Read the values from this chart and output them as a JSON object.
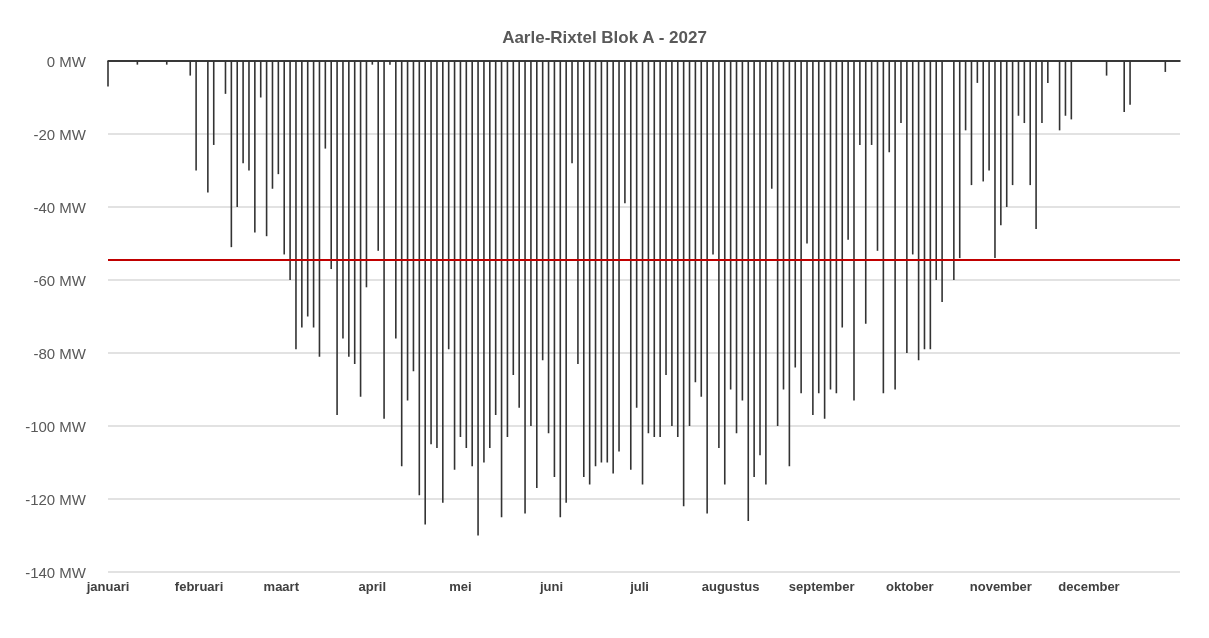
{
  "chart_data": {
    "type": "bar",
    "title": "Aarle-Rixtel Blok A - 2027",
    "x": [
      "2027-01-01",
      "2027-01-03",
      "2027-01-05",
      "2027-01-07",
      "2027-01-09",
      "2027-01-11",
      "2027-01-13",
      "2027-01-15",
      "2027-01-17",
      "2027-01-19",
      "2027-01-21",
      "2027-01-23",
      "2027-01-25",
      "2027-01-27",
      "2027-01-29",
      "2027-01-31",
      "2027-02-02",
      "2027-02-04",
      "2027-02-06",
      "2027-02-08",
      "2027-02-10",
      "2027-02-12",
      "2027-02-14",
      "2027-02-16",
      "2027-02-18",
      "2027-02-20",
      "2027-02-22",
      "2027-02-24",
      "2027-02-26",
      "2027-02-28",
      "2027-03-02",
      "2027-03-04",
      "2027-03-06",
      "2027-03-08",
      "2027-03-10",
      "2027-03-12",
      "2027-03-14",
      "2027-03-16",
      "2027-03-18",
      "2027-03-20",
      "2027-03-22",
      "2027-03-24",
      "2027-03-26",
      "2027-03-28",
      "2027-03-30",
      "2027-04-01",
      "2027-04-03",
      "2027-04-05",
      "2027-04-07",
      "2027-04-09",
      "2027-04-11",
      "2027-04-13",
      "2027-04-15",
      "2027-04-17",
      "2027-04-19",
      "2027-04-21",
      "2027-04-23",
      "2027-04-25",
      "2027-04-27",
      "2027-04-29",
      "2027-05-01",
      "2027-05-03",
      "2027-05-05",
      "2027-05-07",
      "2027-05-09",
      "2027-05-11",
      "2027-05-13",
      "2027-05-15",
      "2027-05-17",
      "2027-05-19",
      "2027-05-21",
      "2027-05-23",
      "2027-05-25",
      "2027-05-27",
      "2027-05-29",
      "2027-05-31",
      "2027-06-02",
      "2027-06-04",
      "2027-06-06",
      "2027-06-08",
      "2027-06-10",
      "2027-06-12",
      "2027-06-14",
      "2027-06-16",
      "2027-06-18",
      "2027-06-20",
      "2027-06-22",
      "2027-06-24",
      "2027-06-26",
      "2027-06-28",
      "2027-06-30",
      "2027-07-02",
      "2027-07-04",
      "2027-07-06",
      "2027-07-08",
      "2027-07-10",
      "2027-07-12",
      "2027-07-14",
      "2027-07-16",
      "2027-07-18",
      "2027-07-20",
      "2027-07-22",
      "2027-07-24",
      "2027-07-26",
      "2027-07-28",
      "2027-07-30",
      "2027-08-01",
      "2027-08-03",
      "2027-08-05",
      "2027-08-07",
      "2027-08-09",
      "2027-08-11",
      "2027-08-13",
      "2027-08-15",
      "2027-08-17",
      "2027-08-19",
      "2027-08-21",
      "2027-08-23",
      "2027-08-25",
      "2027-08-27",
      "2027-08-29",
      "2027-08-31",
      "2027-09-02",
      "2027-09-04",
      "2027-09-06",
      "2027-09-08",
      "2027-09-10",
      "2027-09-12",
      "2027-09-14",
      "2027-09-16",
      "2027-09-18",
      "2027-09-20",
      "2027-09-22",
      "2027-09-24",
      "2027-09-26",
      "2027-09-28",
      "2027-09-30",
      "2027-10-02",
      "2027-10-04",
      "2027-10-06",
      "2027-10-08",
      "2027-10-10",
      "2027-10-12",
      "2027-10-14",
      "2027-10-16",
      "2027-10-18",
      "2027-10-20",
      "2027-10-22",
      "2027-10-24",
      "2027-10-26",
      "2027-10-28",
      "2027-10-30",
      "2027-11-01",
      "2027-11-03",
      "2027-11-05",
      "2027-11-07",
      "2027-11-09",
      "2027-11-11",
      "2027-11-13",
      "2027-11-15",
      "2027-11-17",
      "2027-11-19",
      "2027-11-21",
      "2027-11-23",
      "2027-11-25",
      "2027-11-27",
      "2027-11-29",
      "2027-12-01",
      "2027-12-03",
      "2027-12-05",
      "2027-12-07",
      "2027-12-09",
      "2027-12-11",
      "2027-12-13",
      "2027-12-15",
      "2027-12-17",
      "2027-12-19",
      "2027-12-21",
      "2027-12-23",
      "2027-12-25",
      "2027-12-27",
      "2027-12-29",
      "2027-12-31"
    ],
    "series": [
      {
        "color": "#333333",
        "values": [
          -7,
          0,
          0,
          0,
          0,
          -1,
          0,
          0,
          0,
          0,
          -1,
          0,
          0,
          0,
          -4,
          -30,
          0,
          -36,
          -23,
          0,
          -9,
          -51,
          -40,
          -28,
          -30,
          -47,
          -10,
          -48,
          -35,
          -31,
          -53,
          -60,
          -79,
          -73,
          -70,
          -73,
          -81,
          -24,
          -57,
          -97,
          -76,
          -81,
          -83,
          -92,
          -62,
          -1,
          -52,
          -98,
          -1,
          -76,
          -111,
          -93,
          -85,
          -119,
          -127,
          -105,
          -106,
          -121,
          -79,
          -112,
          -103,
          -106,
          -111,
          -130,
          -110,
          -106,
          -97,
          -125,
          -103,
          -86,
          -95,
          -124,
          -100,
          -117,
          -82,
          -102,
          -114,
          -125,
          -121,
          -28,
          -83,
          -114,
          -116,
          -111,
          -110,
          -110,
          -113,
          -107,
          -39,
          -112,
          -95,
          -116,
          -102,
          -103,
          -103,
          -86,
          -100,
          -103,
          -122,
          -100,
          -88,
          -92,
          -124,
          -53,
          -106,
          -116,
          -90,
          -102,
          -93,
          -126,
          -114,
          -108,
          -116,
          -35,
          -100,
          -90,
          -111,
          -84,
          -91,
          -50,
          -97,
          -91,
          -98,
          -90,
          -91,
          -73,
          -49,
          -93,
          -23,
          -72,
          -23,
          -52,
          -91,
          -25,
          -90,
          -17,
          -80,
          -53,
          -82,
          -79,
          -79,
          -60,
          -66,
          0,
          -60,
          -54,
          -19,
          -34,
          -6,
          -33,
          -30,
          -54,
          -45,
          -40,
          -34,
          -15,
          -17,
          -34,
          -46,
          -17,
          -6,
          0,
          -19,
          -15,
          -16,
          0,
          0,
          0,
          0,
          0,
          -4,
          0,
          0,
          -14,
          -12,
          0,
          0,
          0,
          0,
          0,
          -3,
          0,
          0
        ]
      }
    ],
    "xlim": [
      "2027-01-01",
      "2028-01-01"
    ],
    "xticks": [
      {
        "value": "2027-01-01",
        "label": "januari"
      },
      {
        "value": "2027-02-01",
        "label": "februari"
      },
      {
        "value": "2027-03-01",
        "label": "maart"
      },
      {
        "value": "2027-04-01",
        "label": "april"
      },
      {
        "value": "2027-05-01",
        "label": "mei"
      },
      {
        "value": "2027-06-01",
        "label": "juni"
      },
      {
        "value": "2027-07-01",
        "label": "juli"
      },
      {
        "value": "2027-08-01",
        "label": "augustus"
      },
      {
        "value": "2027-09-01",
        "label": "september"
      },
      {
        "value": "2027-10-01",
        "label": "oktober"
      },
      {
        "value": "2027-11-01",
        "label": "november"
      },
      {
        "value": "2027-12-01",
        "label": "december"
      }
    ],
    "ylim": [
      -140,
      0
    ],
    "yticks": [
      {
        "value": -140,
        "label": "-140 MW"
      },
      {
        "value": -120,
        "label": "-120 MW"
      },
      {
        "value": -100,
        "label": "-100 MW"
      },
      {
        "value": -80,
        "label": "-80 MW"
      },
      {
        "value": -60,
        "label": "-60 MW"
      },
      {
        "value": -40,
        "label": "-40 MW"
      },
      {
        "value": -20,
        "label": "-20 MW"
      },
      {
        "value": 0,
        "label": "0 MW"
      }
    ],
    "grid": "y",
    "ref_lines": [
      {
        "axis": "y",
        "value": -54.5,
        "color": "#c00000"
      }
    ]
  }
}
